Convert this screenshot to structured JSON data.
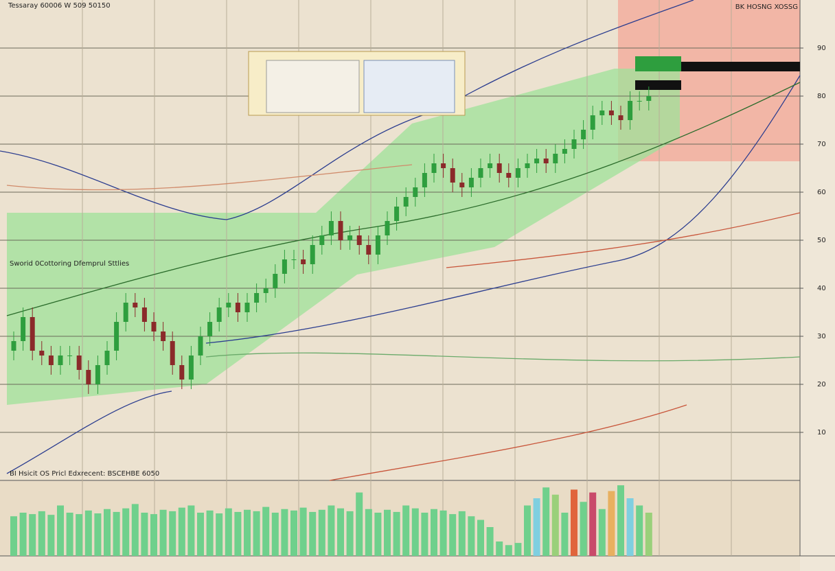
{
  "chart_data": {
    "type": "candlestick",
    "title": "Tessaray 60006 W 509 50150",
    "subtitle": "BK HOSNG XOSSG",
    "annotation": "Sworid 0Cottoring Dfemprul Sttlies",
    "volume_title": "BI Hsicit OS Pricl Edxrecent: BSCEHBE 6050",
    "up_color": "#2e9e3e",
    "down_color": "#8b2a2a",
    "volume_color": "#6fd08c",
    "volume_accent_colors": [
      "#e0643c",
      "#7fcfe0",
      "#c94a6a",
      "#9ad07a",
      "#e8b060"
    ],
    "ylim": [
      0,
      100
    ],
    "yticks": [
      10,
      20,
      30,
      40,
      50,
      60,
      70,
      80,
      90
    ],
    "volume_ylim": [
      0,
      100
    ],
    "grid": true,
    "open": [
      27,
      29,
      34,
      27,
      26,
      24,
      26,
      26,
      23,
      20,
      24,
      27,
      33,
      37,
      36,
      33,
      31,
      29,
      24,
      21,
      26,
      30,
      33,
      36,
      37,
      35,
      37,
      39,
      40,
      43,
      46,
      46,
      45,
      49,
      51,
      54,
      50,
      51,
      49,
      47,
      51,
      54,
      57,
      59,
      61,
      64,
      66,
      65,
      62,
      61,
      63,
      65,
      66,
      64,
      63,
      65,
      66,
      67,
      66,
      68,
      69,
      71,
      73,
      76,
      77,
      76,
      75,
      79,
      79
    ],
    "high": [
      31,
      36,
      36,
      29,
      28,
      28,
      28,
      28,
      25,
      26,
      29,
      35,
      39,
      39,
      38,
      35,
      33,
      31,
      26,
      28,
      32,
      35,
      38,
      39,
      39,
      39,
      41,
      42,
      45,
      48,
      48,
      48,
      51,
      53,
      56,
      56,
      53,
      53,
      51,
      53,
      56,
      59,
      61,
      63,
      66,
      68,
      68,
      67,
      64,
      65,
      67,
      68,
      68,
      66,
      67,
      68,
      69,
      69,
      70,
      71,
      73,
      75,
      78,
      79,
      79,
      78,
      81,
      81,
      82
    ],
    "low": [
      25,
      27,
      25,
      24,
      22,
      22,
      24,
      21,
      18,
      18,
      22,
      25,
      31,
      34,
      31,
      29,
      27,
      22,
      19,
      19,
      24,
      28,
      31,
      34,
      33,
      33,
      35,
      37,
      38,
      41,
      44,
      43,
      43,
      47,
      49,
      48,
      48,
      47,
      45,
      45,
      49,
      52,
      55,
      57,
      59,
      62,
      63,
      60,
      59,
      59,
      61,
      63,
      62,
      61,
      61,
      63,
      64,
      64,
      64,
      66,
      67,
      69,
      71,
      74,
      74,
      73,
      73,
      77,
      77
    ],
    "close": [
      29,
      34,
      27,
      26,
      24,
      26,
      26,
      23,
      20,
      24,
      27,
      33,
      37,
      36,
      33,
      31,
      29,
      24,
      21,
      26,
      30,
      33,
      36,
      37,
      35,
      37,
      39,
      40,
      43,
      46,
      46,
      45,
      49,
      51,
      54,
      50,
      51,
      49,
      47,
      51,
      54,
      57,
      59,
      61,
      64,
      66,
      65,
      62,
      61,
      63,
      65,
      66,
      64,
      63,
      65,
      66,
      67,
      66,
      68,
      69,
      71,
      73,
      76,
      77,
      76,
      75,
      79,
      79,
      80
    ],
    "volume": [
      55,
      60,
      58,
      62,
      57,
      70,
      60,
      58,
      63,
      59,
      65,
      61,
      66,
      72,
      60,
      58,
      64,
      62,
      67,
      70,
      60,
      63,
      59,
      66,
      61,
      64,
      62,
      68,
      60,
      65,
      63,
      67,
      61,
      64,
      70,
      66,
      62,
      88,
      65,
      60,
      64,
      61,
      70,
      66,
      60,
      65,
      63,
      58,
      62,
      55,
      50,
      40,
      20,
      15,
      18,
      70,
      80,
      95,
      85,
      60,
      92,
      75,
      88,
      65,
      90,
      98,
      80,
      70,
      60
    ]
  }
}
